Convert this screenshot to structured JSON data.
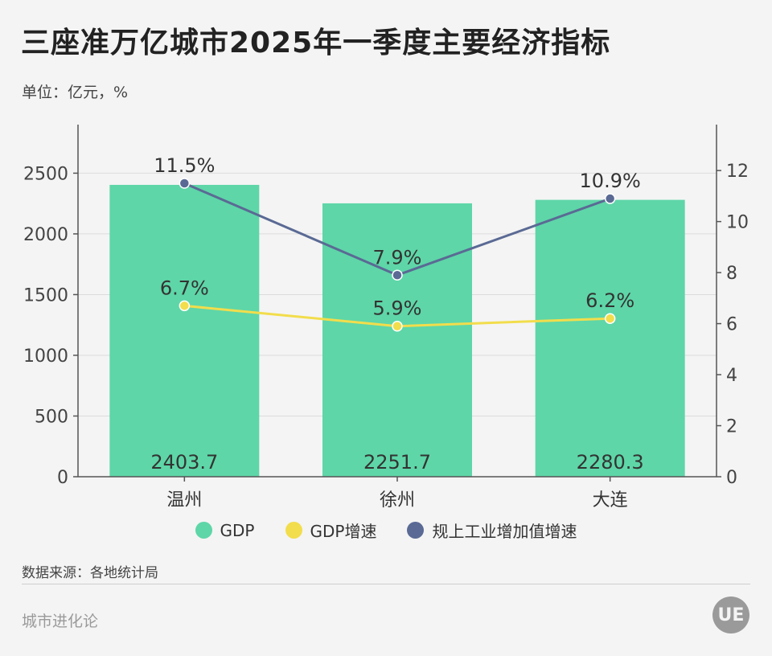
{
  "title": "三座准万亿城市2025年一季度主要经济指标",
  "unit": "单位：亿元，%",
  "source": "数据来源：各地统计局",
  "brand": "城市进化论",
  "logo_text": "UE",
  "legend": [
    {
      "label": "GDP",
      "color": "#5ed6a8"
    },
    {
      "label": "GDP增速",
      "color": "#f2dd4c"
    },
    {
      "label": "规上工业增加值增速",
      "color": "#5a6a94"
    }
  ],
  "chart_data": {
    "type": "bar",
    "categories": [
      "温州",
      "徐州",
      "大连"
    ],
    "series": [
      {
        "name": "GDP",
        "type": "bar",
        "axis": "left",
        "values": [
          2403.7,
          2251.7,
          2280.3
        ],
        "labels": [
          "2403.7",
          "2251.7",
          "2280.3"
        ],
        "color": "#5ed6a8"
      },
      {
        "name": "GDP增速",
        "type": "line",
        "axis": "right",
        "values": [
          6.7,
          5.9,
          6.2
        ],
        "labels": [
          "6.7%",
          "5.9%",
          "6.2%"
        ],
        "color": "#f2dd4c"
      },
      {
        "name": "规上工业增加值增速",
        "type": "line",
        "axis": "right",
        "values": [
          11.5,
          7.9,
          10.9
        ],
        "labels": [
          "11.5%",
          "7.9%",
          "10.9%"
        ],
        "color": "#5a6a94"
      }
    ],
    "y_left": {
      "ticks": [
        0,
        500,
        1000,
        1500,
        2000,
        2500
      ],
      "ylim": [
        0,
        2900
      ]
    },
    "y_right": {
      "ticks": [
        0,
        2,
        4,
        6,
        8,
        10,
        12
      ],
      "ylim": [
        0,
        13.8
      ]
    },
    "grid": true
  }
}
